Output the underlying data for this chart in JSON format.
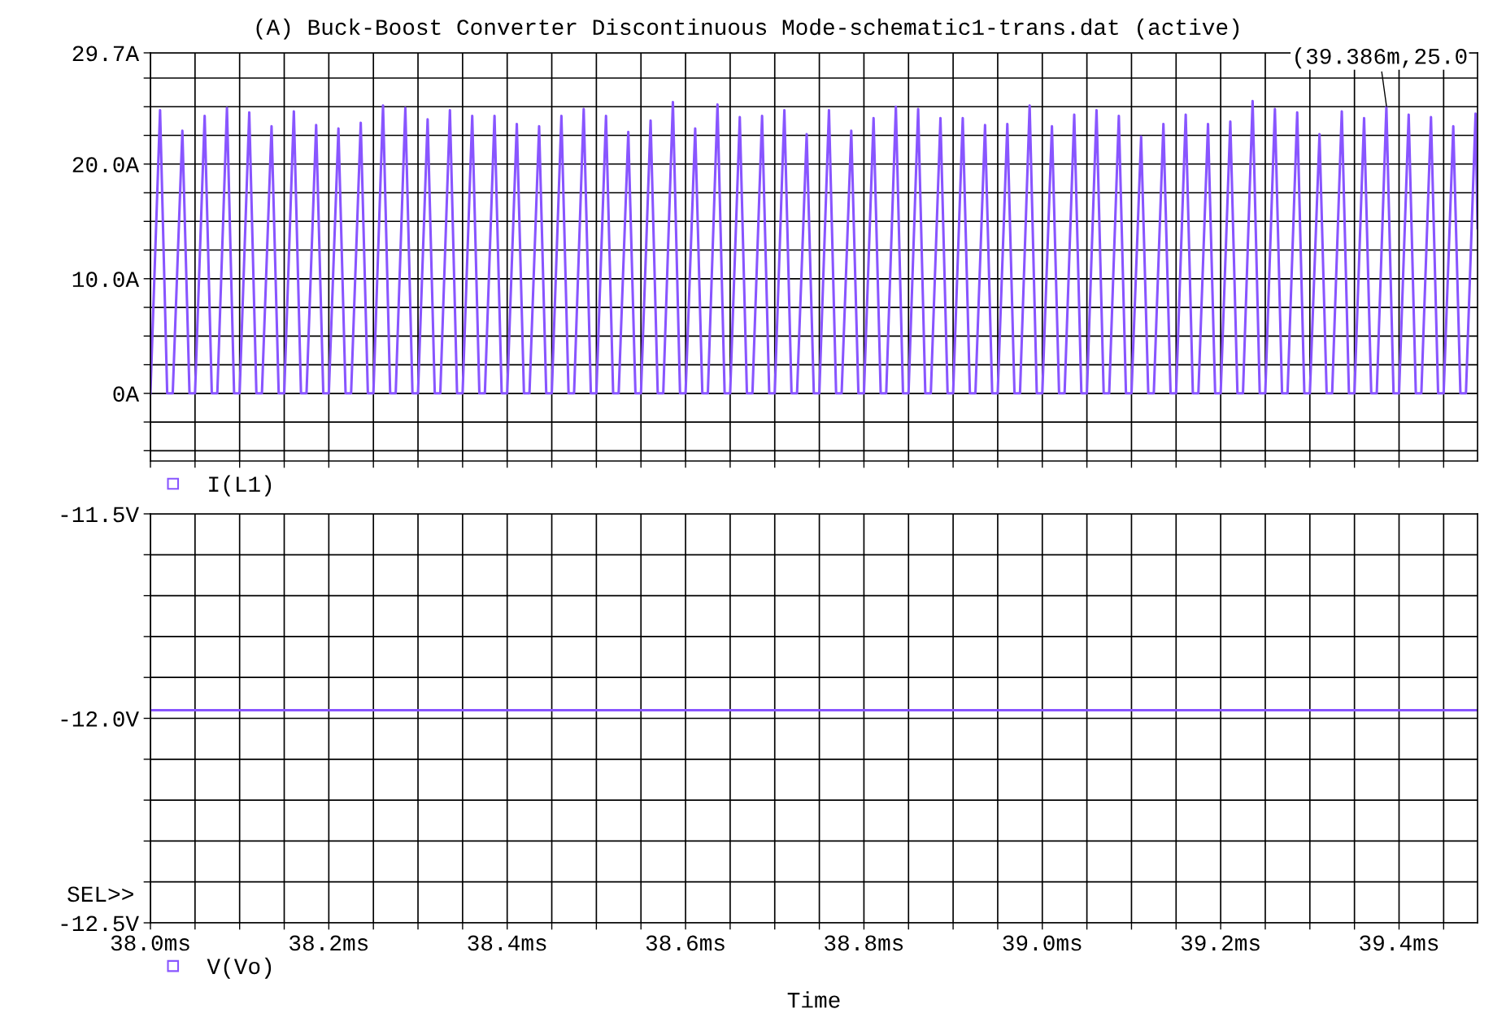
{
  "chart_data": [
    {
      "type": "line",
      "title": "(A) Buck-Boost Converter Discontinuous Mode-schematic1-trans.dat (active)",
      "xlim": [
        38.0,
        39.488
      ],
      "xticks": [
        {
          "value": 38.0,
          "label": null
        },
        {
          "value": 38.05,
          "label": null
        },
        {
          "value": 38.1,
          "label": null
        },
        {
          "value": 38.15,
          "label": null
        },
        {
          "value": 38.2,
          "label": null
        },
        {
          "value": 38.25,
          "label": null
        },
        {
          "value": 38.3,
          "label": null
        },
        {
          "value": 38.35,
          "label": null
        },
        {
          "value": 38.4,
          "label": null
        },
        {
          "value": 38.45,
          "label": null
        },
        {
          "value": 38.5,
          "label": null
        },
        {
          "value": 38.55,
          "label": null
        },
        {
          "value": 38.6,
          "label": null
        },
        {
          "value": 38.65,
          "label": null
        },
        {
          "value": 38.7,
          "label": null
        },
        {
          "value": 38.75,
          "label": null
        },
        {
          "value": 38.8,
          "label": null
        },
        {
          "value": 38.85,
          "label": null
        },
        {
          "value": 38.9,
          "label": null
        },
        {
          "value": 38.95,
          "label": null
        },
        {
          "value": 39.0,
          "label": null
        },
        {
          "value": 39.05,
          "label": null
        },
        {
          "value": 39.1,
          "label": null
        },
        {
          "value": 39.15,
          "label": null
        },
        {
          "value": 39.2,
          "label": null
        },
        {
          "value": 39.25,
          "label": null
        },
        {
          "value": 39.3,
          "label": null
        },
        {
          "value": 39.35,
          "label": null
        },
        {
          "value": 39.4,
          "label": null
        },
        {
          "value": 39.45,
          "label": null
        }
      ],
      "ylim": [
        -5.9,
        29.7
      ],
      "yticks": [
        {
          "value": 29.7,
          "label": "29.7A"
        },
        {
          "value": 27.5,
          "label": null
        },
        {
          "value": 25,
          "label": null
        },
        {
          "value": 22.5,
          "label": null
        },
        {
          "value": 20,
          "label": "20.0A"
        },
        {
          "value": 17.5,
          "label": null
        },
        {
          "value": 15,
          "label": null
        },
        {
          "value": 12.5,
          "label": null
        },
        {
          "value": 10,
          "label": "10.0A"
        },
        {
          "value": 7.5,
          "label": null
        },
        {
          "value": 5,
          "label": null
        },
        {
          "value": 2.5,
          "label": null
        },
        {
          "value": 0,
          "label": "0A"
        },
        {
          "value": -2.5,
          "label": null
        },
        {
          "value": -5,
          "label": null
        }
      ],
      "tick_labels": "y",
      "grid": true,
      "legend": "bottom left",
      "marker": "none",
      "line_style": "solid",
      "annotations": [
        {
          "text": "(39.386m,25.0",
          "x": 39.386,
          "y": 25.0
        }
      ],
      "series": [
        {
          "name": "I(L1)",
          "color": "#8855ff",
          "x": [
            38.0,
            38.0108,
            38.0188,
            38.025,
            38.0358,
            38.0438,
            38.05,
            38.0608,
            38.0688,
            38.075,
            38.0858,
            38.0938,
            38.1,
            38.1108,
            38.1188,
            38.125,
            38.1358,
            38.1438,
            38.15,
            38.1608,
            38.1688,
            38.175,
            38.1858,
            38.1938,
            38.2,
            38.2108,
            38.2188,
            38.225,
            38.2358,
            38.2438,
            38.25,
            38.2608,
            38.2688,
            38.275,
            38.2858,
            38.2938,
            38.3,
            38.3108,
            38.3188,
            38.325,
            38.3358,
            38.3438,
            38.35,
            38.3608,
            38.3688,
            38.375,
            38.3858,
            38.3938,
            38.4,
            38.4108,
            38.4188,
            38.425,
            38.4358,
            38.4438,
            38.45,
            38.4608,
            38.4688,
            38.475,
            38.4858,
            38.4938,
            38.5,
            38.5108,
            38.5188,
            38.525,
            38.5358,
            38.5438,
            38.55,
            38.5608,
            38.5688,
            38.575,
            38.5858,
            38.5938,
            38.6,
            38.6108,
            38.6188,
            38.625,
            38.6358,
            38.6438,
            38.65,
            38.6608,
            38.6688,
            38.675,
            38.6858,
            38.6938,
            38.7,
            38.7108,
            38.7188,
            38.725,
            38.7358,
            38.7438,
            38.75,
            38.7608,
            38.7688,
            38.775,
            38.7858,
            38.7938,
            38.8,
            38.8108,
            38.8188,
            38.825,
            38.8358,
            38.8438,
            38.85,
            38.8608,
            38.8688,
            38.875,
            38.8858,
            38.8938,
            38.9,
            38.9108,
            38.9188,
            38.925,
            38.9358,
            38.9438,
            38.95,
            38.9608,
            38.9688,
            38.975,
            38.9858,
            38.9938,
            39.0,
            39.0108,
            39.0188,
            39.025,
            39.0358,
            39.0438,
            39.05,
            39.0608,
            39.0688,
            39.075,
            39.0858,
            39.0938,
            39.1,
            39.1108,
            39.1188,
            39.125,
            39.1358,
            39.1438,
            39.15,
            39.1608,
            39.1688,
            39.175,
            39.1858,
            39.1938,
            39.2,
            39.2108,
            39.2188,
            39.225,
            39.2358,
            39.2438,
            39.25,
            39.2608,
            39.2688,
            39.275,
            39.2858,
            39.2938,
            39.3,
            39.3108,
            39.3188,
            39.325,
            39.3358,
            39.3438,
            39.35,
            39.3608,
            39.3688,
            39.375,
            39.3858,
            39.3938,
            39.4,
            39.4108,
            39.4188,
            39.425,
            39.4358,
            39.4438,
            39.45,
            39.4608,
            39.4688,
            39.475,
            39.4858,
            39.488
          ],
          "values": [
            0,
            24.7,
            0,
            0,
            22.9,
            0,
            0,
            24.2,
            0,
            0,
            24.9,
            0,
            0,
            24.5,
            0,
            0,
            23.3,
            0,
            0,
            24.6,
            0,
            0,
            23.4,
            0,
            0,
            23.1,
            0,
            0,
            23.6,
            0,
            0,
            25.1,
            0,
            0,
            24.9,
            0,
            0,
            23.9,
            0,
            0,
            24.7,
            0,
            0,
            24.2,
            0,
            0,
            24.2,
            0,
            0,
            23.5,
            0,
            0,
            23.3,
            0,
            0,
            24.2,
            0,
            0,
            24.8,
            0,
            0,
            24.2,
            0,
            0,
            22.8,
            0,
            0,
            23.8,
            0,
            0,
            25.4,
            0,
            0,
            23.1,
            0,
            0,
            25.2,
            0,
            0,
            24.1,
            0,
            0,
            24.2,
            0,
            0,
            24.7,
            0,
            0,
            22.6,
            0,
            0,
            24.7,
            0,
            0,
            22.9,
            0,
            0,
            24.0,
            0,
            0,
            25.0,
            0,
            0,
            24.8,
            0,
            0,
            24.0,
            0,
            0,
            24.0,
            0,
            0,
            23.4,
            0,
            0,
            23.5,
            0,
            0,
            25.1,
            0,
            0,
            23.3,
            0,
            0,
            24.3,
            0,
            0,
            24.7,
            0,
            0,
            24.2,
            0,
            0,
            22.4,
            0,
            0,
            23.5,
            0,
            0,
            24.3,
            0,
            0,
            23.5,
            0,
            0,
            23.7,
            0,
            0,
            25.5,
            0,
            0,
            24.8,
            0,
            0,
            24.5,
            0,
            0,
            22.6,
            0,
            0,
            24.6,
            0,
            0,
            24.0,
            0,
            0,
            25.0,
            0,
            0,
            24.3,
            0,
            0,
            24.1,
            0,
            0,
            23.3,
            0,
            0,
            24.4,
            14.4
          ]
        }
      ]
    },
    {
      "type": "line",
      "xlabel": "Time",
      "xlim": [
        38.0,
        39.488
      ],
      "xticks": [
        {
          "value": 38.0,
          "label": "38.0ms"
        },
        {
          "value": 38.05,
          "label": null
        },
        {
          "value": 38.1,
          "label": null
        },
        {
          "value": 38.15,
          "label": null
        },
        {
          "value": 38.2,
          "label": "38.2ms"
        },
        {
          "value": 38.25,
          "label": null
        },
        {
          "value": 38.3,
          "label": null
        },
        {
          "value": 38.35,
          "label": null
        },
        {
          "value": 38.4,
          "label": "38.4ms"
        },
        {
          "value": 38.45,
          "label": null
        },
        {
          "value": 38.5,
          "label": null
        },
        {
          "value": 38.55,
          "label": null
        },
        {
          "value": 38.6,
          "label": "38.6ms"
        },
        {
          "value": 38.65,
          "label": null
        },
        {
          "value": 38.7,
          "label": null
        },
        {
          "value": 38.75,
          "label": null
        },
        {
          "value": 38.8,
          "label": "38.8ms"
        },
        {
          "value": 38.85,
          "label": null
        },
        {
          "value": 38.9,
          "label": null
        },
        {
          "value": 38.95,
          "label": null
        },
        {
          "value": 39.0,
          "label": "39.0ms"
        },
        {
          "value": 39.05,
          "label": null
        },
        {
          "value": 39.1,
          "label": null
        },
        {
          "value": 39.15,
          "label": null
        },
        {
          "value": 39.2,
          "label": "39.2ms"
        },
        {
          "value": 39.25,
          "label": null
        },
        {
          "value": 39.3,
          "label": null
        },
        {
          "value": 39.35,
          "label": null
        },
        {
          "value": 39.4,
          "label": "39.4ms"
        },
        {
          "value": 39.45,
          "label": null
        }
      ],
      "ylim": [
        -12.5,
        -11.5
      ],
      "yticks": [
        {
          "value": -11.5,
          "label": "-11.5V"
        },
        {
          "value": -11.6,
          "label": null
        },
        {
          "value": -11.7,
          "label": null
        },
        {
          "value": -11.8,
          "label": null
        },
        {
          "value": -11.9,
          "label": null
        },
        {
          "value": -12.0,
          "label": "-12.0V"
        },
        {
          "value": -12.1,
          "label": null
        },
        {
          "value": -12.2,
          "label": null
        },
        {
          "value": -12.3,
          "label": null
        },
        {
          "value": -12.4,
          "label": null
        },
        {
          "value": -12.5,
          "label": "-12.5V"
        }
      ],
      "grid": true,
      "legend": "bottom left",
      "marker": "none",
      "line_style": "solid",
      "annotations": [
        "SEL>>"
      ],
      "series": [
        {
          "name": "V(Vo)",
          "color": "#8855ff",
          "x": [
            38.0,
            38.05,
            38.1,
            38.15,
            38.2,
            38.25,
            38.3,
            38.35,
            38.4,
            38.45,
            38.5,
            38.55,
            38.6,
            38.65,
            38.7,
            38.75,
            38.8,
            38.85,
            38.9,
            38.95,
            39.0,
            39.05,
            39.1,
            39.15,
            39.2,
            39.25,
            39.3,
            39.35,
            39.4,
            39.45,
            39.488
          ],
          "values": [
            -11.98,
            -11.98,
            -11.98,
            -11.98,
            -11.98,
            -11.98,
            -11.98,
            -11.98,
            -11.98,
            -11.98,
            -11.98,
            -11.98,
            -11.98,
            -11.98,
            -11.98,
            -11.98,
            -11.98,
            -11.98,
            -11.98,
            -11.98,
            -11.98,
            -11.98,
            -11.98,
            -11.98,
            -11.98,
            -11.98,
            -11.98,
            -11.98,
            -11.98,
            -11.98,
            -11.98
          ]
        }
      ]
    }
  ]
}
